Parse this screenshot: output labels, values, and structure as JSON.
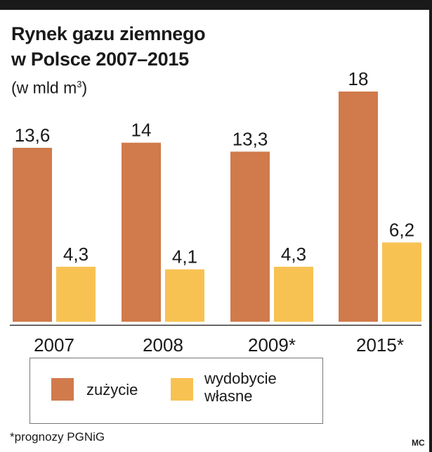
{
  "title_line1": "Rynek gazu ziemnego",
  "title_line2": "w Polsce 2007–2015",
  "subtitle_prefix": "(w mld m",
  "subtitle_sup": "3",
  "subtitle_suffix": ")",
  "footnote": "*prognozy PGNiG",
  "credit": "MC",
  "colors": {
    "zuzycie": "#d17a4b",
    "wydobycie": "#f8c253",
    "axis": "#333333"
  },
  "chart_data": {
    "type": "bar",
    "title": "Rynek gazu ziemnego w Polsce 2007–2015",
    "subtitle": "(w mld m3)",
    "categories": [
      "2007",
      "2008",
      "2009*",
      "2015*"
    ],
    "series": [
      {
        "name": "zużycie",
        "values": [
          13.6,
          14,
          13.3,
          18
        ],
        "labels": [
          "13,6",
          "14",
          "13,3",
          "18"
        ]
      },
      {
        "name": "wydobycie własne",
        "values": [
          4.3,
          4.1,
          4.3,
          6.2
        ],
        "labels": [
          "4,3",
          "4,1",
          "4,3",
          "6,2"
        ]
      }
    ],
    "ylim": [
      0,
      18
    ],
    "grid": false,
    "legend": "bottom"
  },
  "legend": {
    "item1": "zużycie",
    "item2_line1": "wydobycie",
    "item2_line2": "własne"
  }
}
